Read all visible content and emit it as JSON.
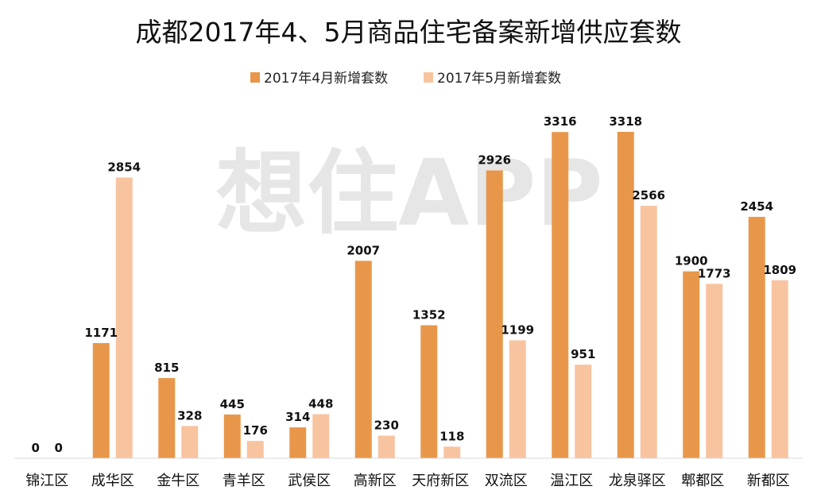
{
  "chart_data": {
    "type": "bar",
    "title": "成都2017年4、5月商品住宅备案新增供应套数",
    "watermark": "想住APP",
    "legend_position": "top",
    "grid": false,
    "categories": [
      "锦江区",
      "成华区",
      "金牛区",
      "青羊区",
      "武侯区",
      "高新区",
      "天府新区",
      "双流区",
      "温江区",
      "龙泉驿区",
      "郫都区",
      "新都区"
    ],
    "series": [
      {
        "name": "2017年4月新增套数",
        "color": "#E8974A",
        "values": [
          0,
          1171,
          815,
          445,
          314,
          2007,
          1352,
          2926,
          3316,
          3318,
          1900,
          2454
        ]
      },
      {
        "name": "2017年5月新增套数",
        "color": "#F8C4A0",
        "values": [
          0,
          2854,
          328,
          176,
          448,
          230,
          118,
          1199,
          951,
          2566,
          1773,
          1809
        ]
      }
    ],
    "ylim": [
      0,
      3318
    ]
  }
}
